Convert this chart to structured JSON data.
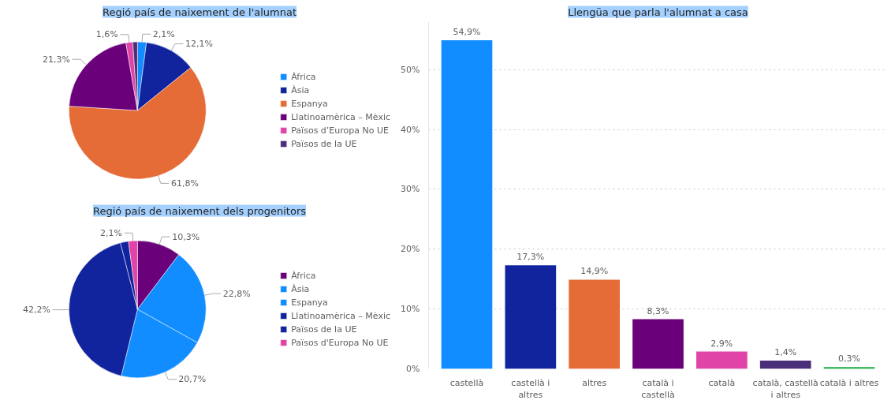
{
  "chart_data": [
    {
      "type": "pie",
      "title": "Regió país de naixement de l'alumnat",
      "categories": [
        "Àfrica",
        "Àsia",
        "Espanya",
        "Llatinoamèrica – Mèxic",
        "Països d’Europa No UE",
        "Països de la UE"
      ],
      "values": [
        2.1,
        12.1,
        61.8,
        21.3,
        1.6,
        1.1
      ],
      "colors": [
        "#118dff",
        "#12239e",
        "#e66c37",
        "#6b007b",
        "#e044a7",
        "#4a2e7a"
      ],
      "value_labels": [
        "2,1%",
        "12,1%",
        "61,8%",
        "21,3%",
        "1,6%",
        null
      ],
      "legend": "right"
    },
    {
      "type": "pie",
      "title": "Regió país de naixement dels progenitors",
      "categories": [
        "Àfrica",
        "Àsia",
        "Espanya",
        "Llatinoamèrica – Mèxic",
        "Països de la UE",
        "Països d'Europa No UE"
      ],
      "values": [
        10.3,
        22.8,
        20.7,
        42.2,
        1.9,
        2.1
      ],
      "colors": [
        "#6b007b",
        "#118dff",
        "#118dff",
        "#12239e",
        "#12239e",
        "#e044a7"
      ],
      "value_labels": [
        "10,3%",
        "22,8%",
        "20,7%",
        "42,2%",
        null,
        "2,1%"
      ],
      "legend": "right"
    },
    {
      "type": "bar",
      "title": "Llengüa que parla l'alumnat a casa",
      "categories": [
        "castellà",
        "castellà i altres",
        "altres",
        "català i castellà",
        "català",
        "català, castellà i altres",
        "català i altres"
      ],
      "values": [
        54.9,
        17.3,
        14.9,
        8.3,
        2.9,
        1.4,
        0.3
      ],
      "colors": [
        "#118dff",
        "#12239e",
        "#e66c37",
        "#6b007b",
        "#e044a7",
        "#4a2e7a",
        "#1aab40"
      ],
      "value_labels": [
        "54,9%",
        "17,3%",
        "14,9%",
        "8,3%",
        "2,9%",
        "1,4%",
        "0,3%"
      ],
      "ylim": [
        0,
        58
      ],
      "yticks": [
        {
          "value": 0,
          "label": "0%"
        },
        {
          "value": 10,
          "label": "10%"
        },
        {
          "value": 20,
          "label": "20%"
        },
        {
          "value": 30,
          "label": "30%"
        },
        {
          "value": 40,
          "label": "40%"
        },
        {
          "value": 50,
          "label": "50%"
        }
      ],
      "grid": "y"
    }
  ]
}
